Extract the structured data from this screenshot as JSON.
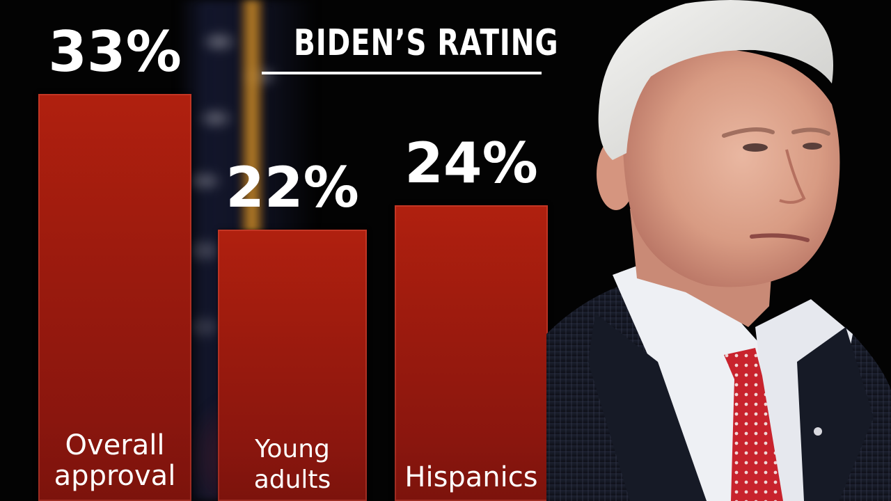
{
  "chart_data": {
    "type": "bar",
    "title": "BIDEN’S RATING",
    "categories": [
      "Overall\napproval",
      "Young\nadults",
      "Hispanics"
    ],
    "values": [
      33,
      22,
      24
    ],
    "value_labels": [
      "33%",
      "22%",
      "24%"
    ],
    "unit": "%",
    "xlabel": "",
    "ylabel": "",
    "ylim": [
      0,
      55
    ],
    "grid": false,
    "legend": "none",
    "bar_color": "#9a1a0e"
  },
  "image": {
    "subject": "portrait-photo"
  }
}
